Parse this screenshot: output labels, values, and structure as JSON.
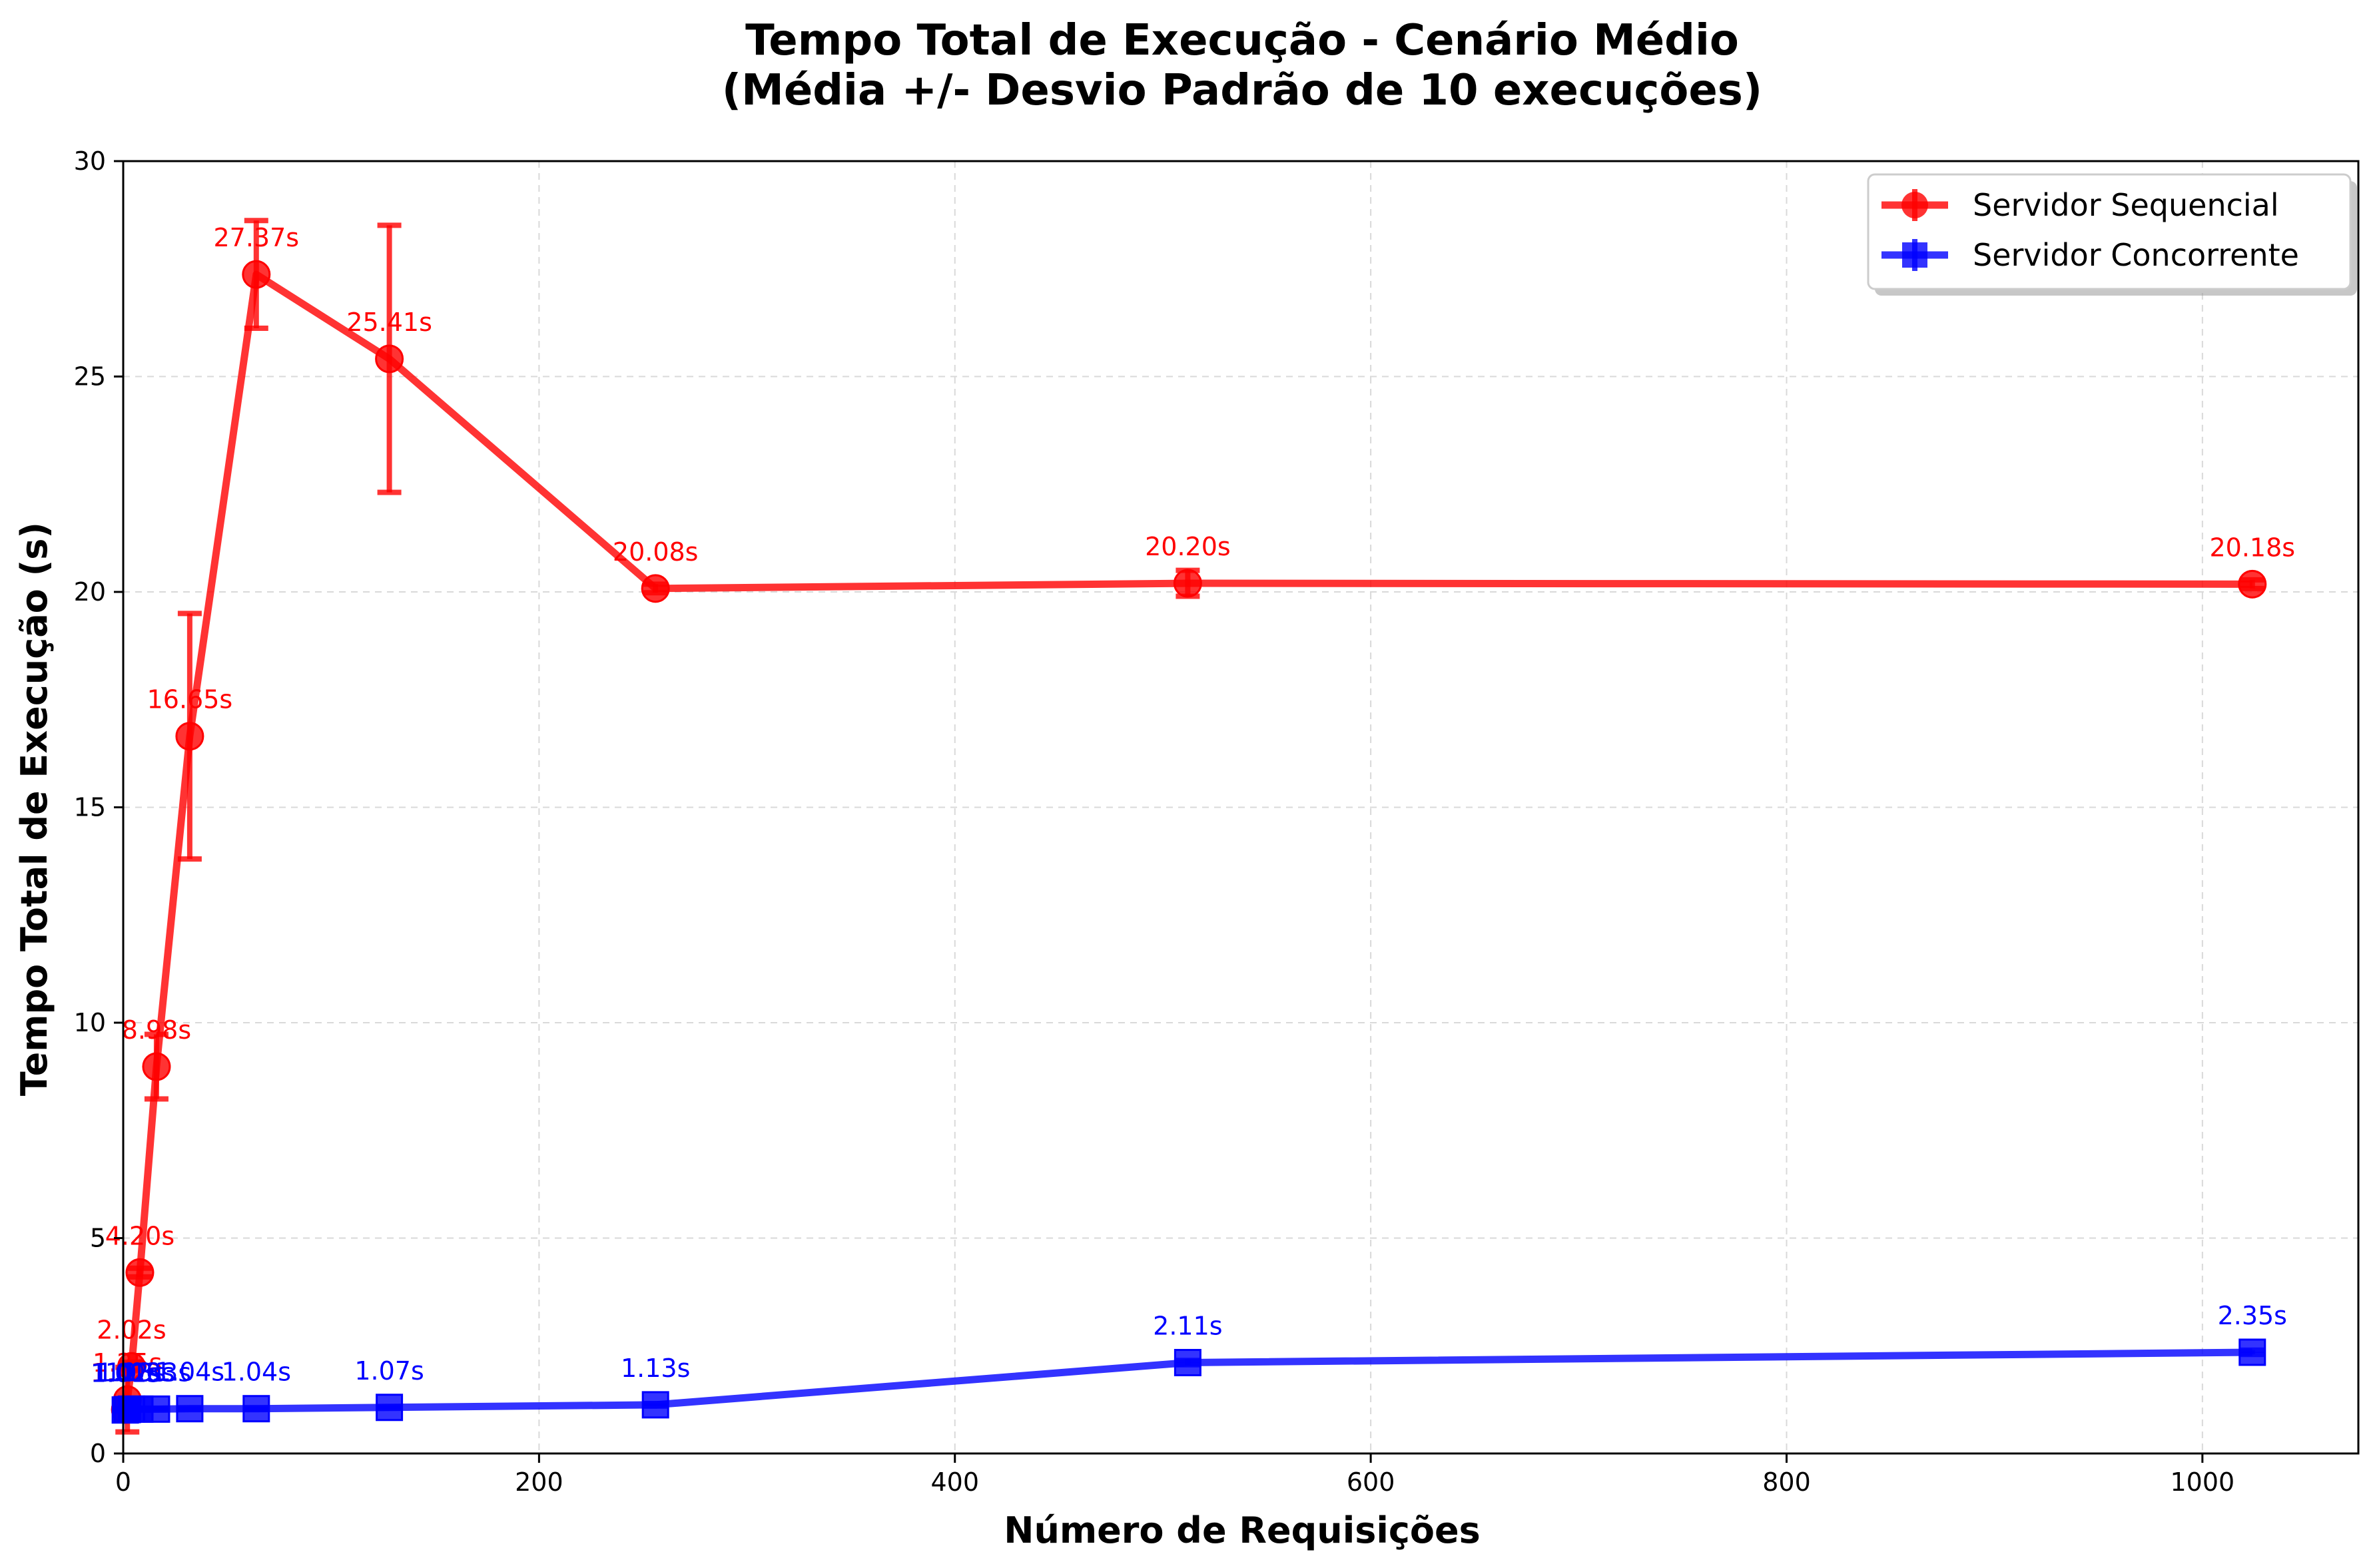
{
  "chart_data": {
    "type": "line",
    "title": "Tempo Total de Execução - Cenário Médio",
    "subtitle": "(Média +/- Desvio Padrão de 10 execuções)",
    "xlabel": "Número de Requisições",
    "ylabel": "Tempo Total de Execução (s)",
    "xlim": [
      0,
      1075
    ],
    "ylim": [
      0,
      30
    ],
    "x_ticks": [
      "0",
      "200",
      "400",
      "600",
      "800",
      "1000"
    ],
    "y_ticks": [
      "0",
      "5",
      "10",
      "15",
      "20",
      "25",
      "30"
    ],
    "grid": true,
    "legend_position": "top-right",
    "x": [
      1,
      2,
      4,
      8,
      16,
      32,
      64,
      128,
      256,
      512,
      1024
    ],
    "series": [
      {
        "name": "Servidor Sequencial",
        "color": "#ff0000",
        "marker": "circle",
        "values": [
          1.02,
          1.25,
          2.02,
          4.2,
          8.98,
          16.65,
          27.37,
          25.41,
          20.08,
          20.2,
          20.18
        ],
        "errors": [
          0.05,
          0.75,
          0.1,
          0.1,
          0.75,
          2.85,
          1.25,
          3.1,
          0.1,
          0.3,
          0.1
        ],
        "labels": [
          "1.02s",
          "1.25s",
          "2.02s",
          "4.20s",
          "8.98s",
          "16.65s",
          "27.37s",
          "25.41s",
          "20.08s",
          "20.20s",
          "20.18s"
        ]
      },
      {
        "name": "Servidor Concorrente",
        "color": "#0000ff",
        "marker": "square",
        "values": [
          1.01,
          1.02,
          1.03,
          1.03,
          1.03,
          1.04,
          1.04,
          1.07,
          1.13,
          2.11,
          2.35
        ],
        "errors": [
          0.02,
          0.02,
          0.02,
          0.02,
          0.02,
          0.02,
          0.02,
          0.02,
          0.03,
          0.05,
          0.05
        ],
        "labels": [
          "1.01s",
          "1.02s",
          "1.03s",
          "1.03s",
          "1.03s",
          "1.04s",
          "1.04s",
          "1.07s",
          "1.13s",
          "2.11s",
          "2.35s"
        ]
      }
    ]
  }
}
